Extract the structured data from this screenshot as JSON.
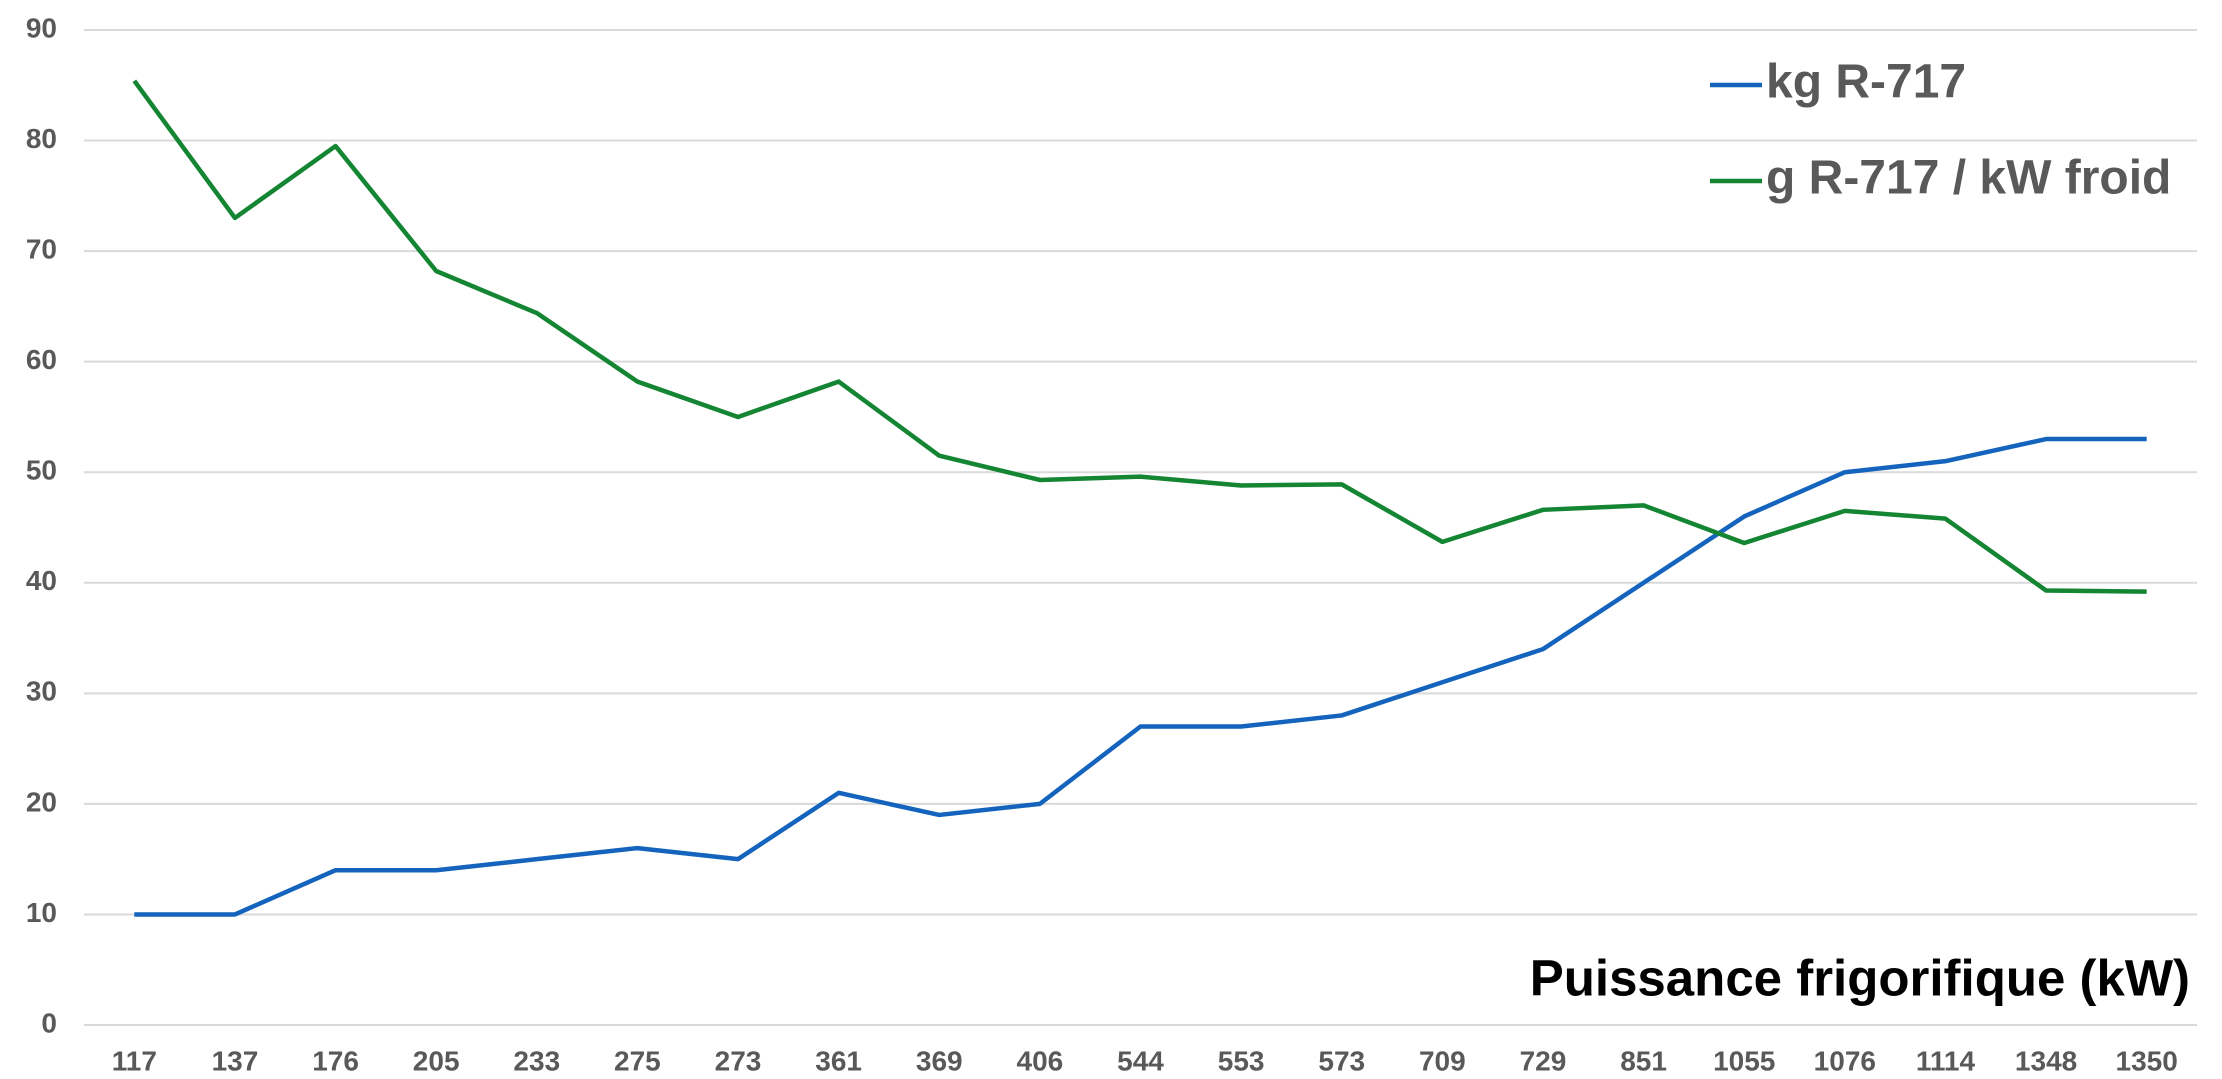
{
  "chart_data": {
    "type": "line",
    "x_label": "Puissance frigorifique (kW)",
    "categories": [
      "117",
      "137",
      "176",
      "205",
      "233",
      "275",
      "273",
      "361",
      "369",
      "406",
      "544",
      "553",
      "573",
      "709",
      "729",
      "851",
      "1055",
      "1076",
      "1114",
      "1348",
      "1350"
    ],
    "series": [
      {
        "name": "kg R-717",
        "color": "#1464bd",
        "values": [
          10,
          10,
          14,
          14,
          15,
          16,
          15,
          21,
          19,
          20,
          27,
          27,
          28,
          31,
          34,
          40,
          46,
          50,
          51,
          53,
          53
        ]
      },
      {
        "name": "g R-717 / kW froid",
        "color": "#148532",
        "values": [
          85.4,
          73,
          79.5,
          68.2,
          64.4,
          58.2,
          55,
          58.2,
          51.5,
          49.3,
          49.6,
          48.8,
          48.9,
          43.7,
          46.6,
          47,
          43.6,
          46.5,
          45.8,
          39.3,
          39.2
        ]
      }
    ],
    "ylim": [
      0,
      90
    ],
    "yticks": [
      0,
      10,
      20,
      30,
      40,
      50,
      60,
      70,
      80,
      90
    ],
    "grid": true,
    "legend": "upper right"
  }
}
